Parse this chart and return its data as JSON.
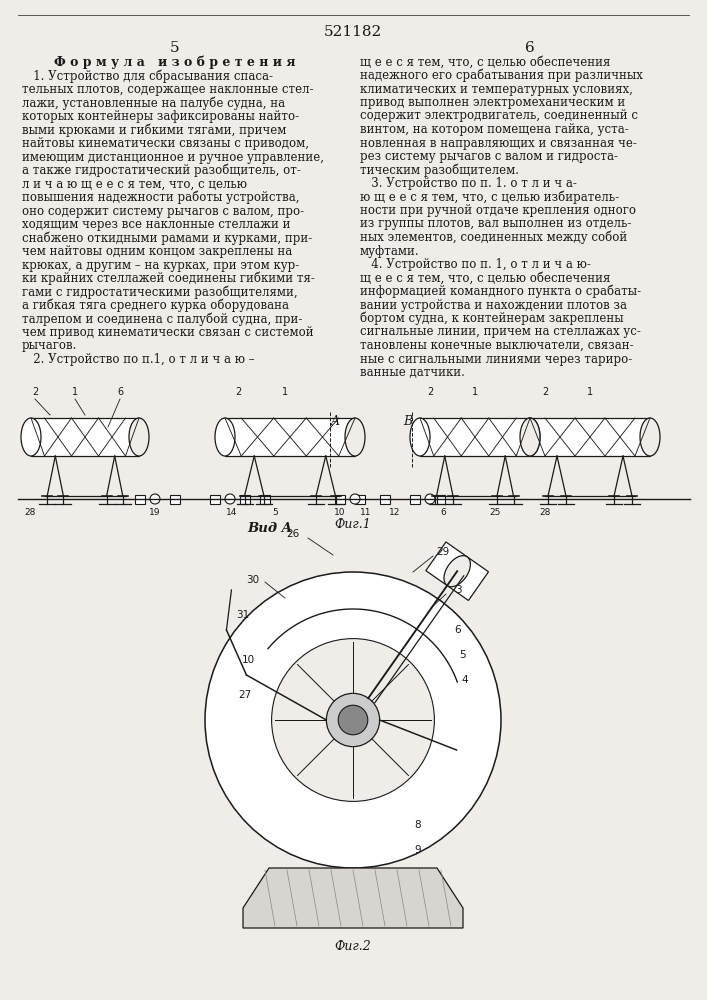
{
  "patent_number": "521182",
  "background_color": "#f0ede8",
  "text_color": "#1a1a1a",
  "left_col_header": "Ф о р м у л а   и з о б р е т е н и я",
  "left_col_lines": [
    "   1. Устройство для сбрасывания спаса-",
    "тельных плотов, содержащее наклонные стел-",
    "лажи, установленные на палубе судна, на",
    "которых контейнеры зафиксированы найто-",
    "выми крюками и гибкими тягами, причем",
    "найтовы кинематически связаны с приводом,",
    "имеющим дистанционное и ручное управление,",
    "а также гидростатический разобщитель, от-",
    "л и ч а ю щ е е с я тем, что, с целью",
    "повышения надежности работы устройства,",
    "оно содержит систему рычагов с валом, про-",
    "ходящим через все наклонные стеллажи и",
    "снабжено откидными рамами и курками, при-",
    "чем найтовы одним концом закреплены на",
    "крюках, а другим – на курках, при этом кур-",
    "ки крайних стеллажей соединены гибкими тя-",
    "гами с гидростатическими разобщителями,",
    "а гибкая тяга среднего курка оборудована",
    "талрепом и соединена с палубой судна, при-",
    "чем привод кинематически связан с системой",
    "рычагов.",
    "   2. Устройство по п.1, о т л и ч а ю –"
  ],
  "right_col_lines": [
    "щ е е с я тем, что, с целью обеспечения",
    "надежного его срабатывания при различных",
    "климатических и температурных условиях,",
    "привод выполнен электромеханическим и",
    "содержит электродвигатель, соединенный с",
    "винтом, на котором помещена гайка, уста-",
    "новленная в направляющих и связанная че-",
    "рез систему рычагов с валом и гидроста-",
    "тическим разобщителем.",
    "   3. Устройство по п. 1. о т л и ч а-",
    "ю щ е е с я тем, что, с целью избиратель-",
    "ности при ручной отдаче крепления одного",
    "из группы плотов, вал выполнен из отдель-",
    "ных элементов, соединенных между собой",
    "муфтами.",
    "   4. Устройство по п. 1, о т л и ч а ю-",
    "щ е е с я тем, что, с целью обеспечения",
    "информацией командного пункта о срабаты-",
    "вании устройства и нахождении плотов за",
    "бортом судна, к контейнерам закреплены",
    "сигнальные линии, причем на стеллажах ус-",
    "тановлены конечные выключатели, связан-",
    "ные с сигнальными линиями через тариро-",
    "ванные датчики."
  ],
  "fig1_label": "Фиг.1",
  "fig2_label": "Фиг.2",
  "view_a_label": "Вид A"
}
